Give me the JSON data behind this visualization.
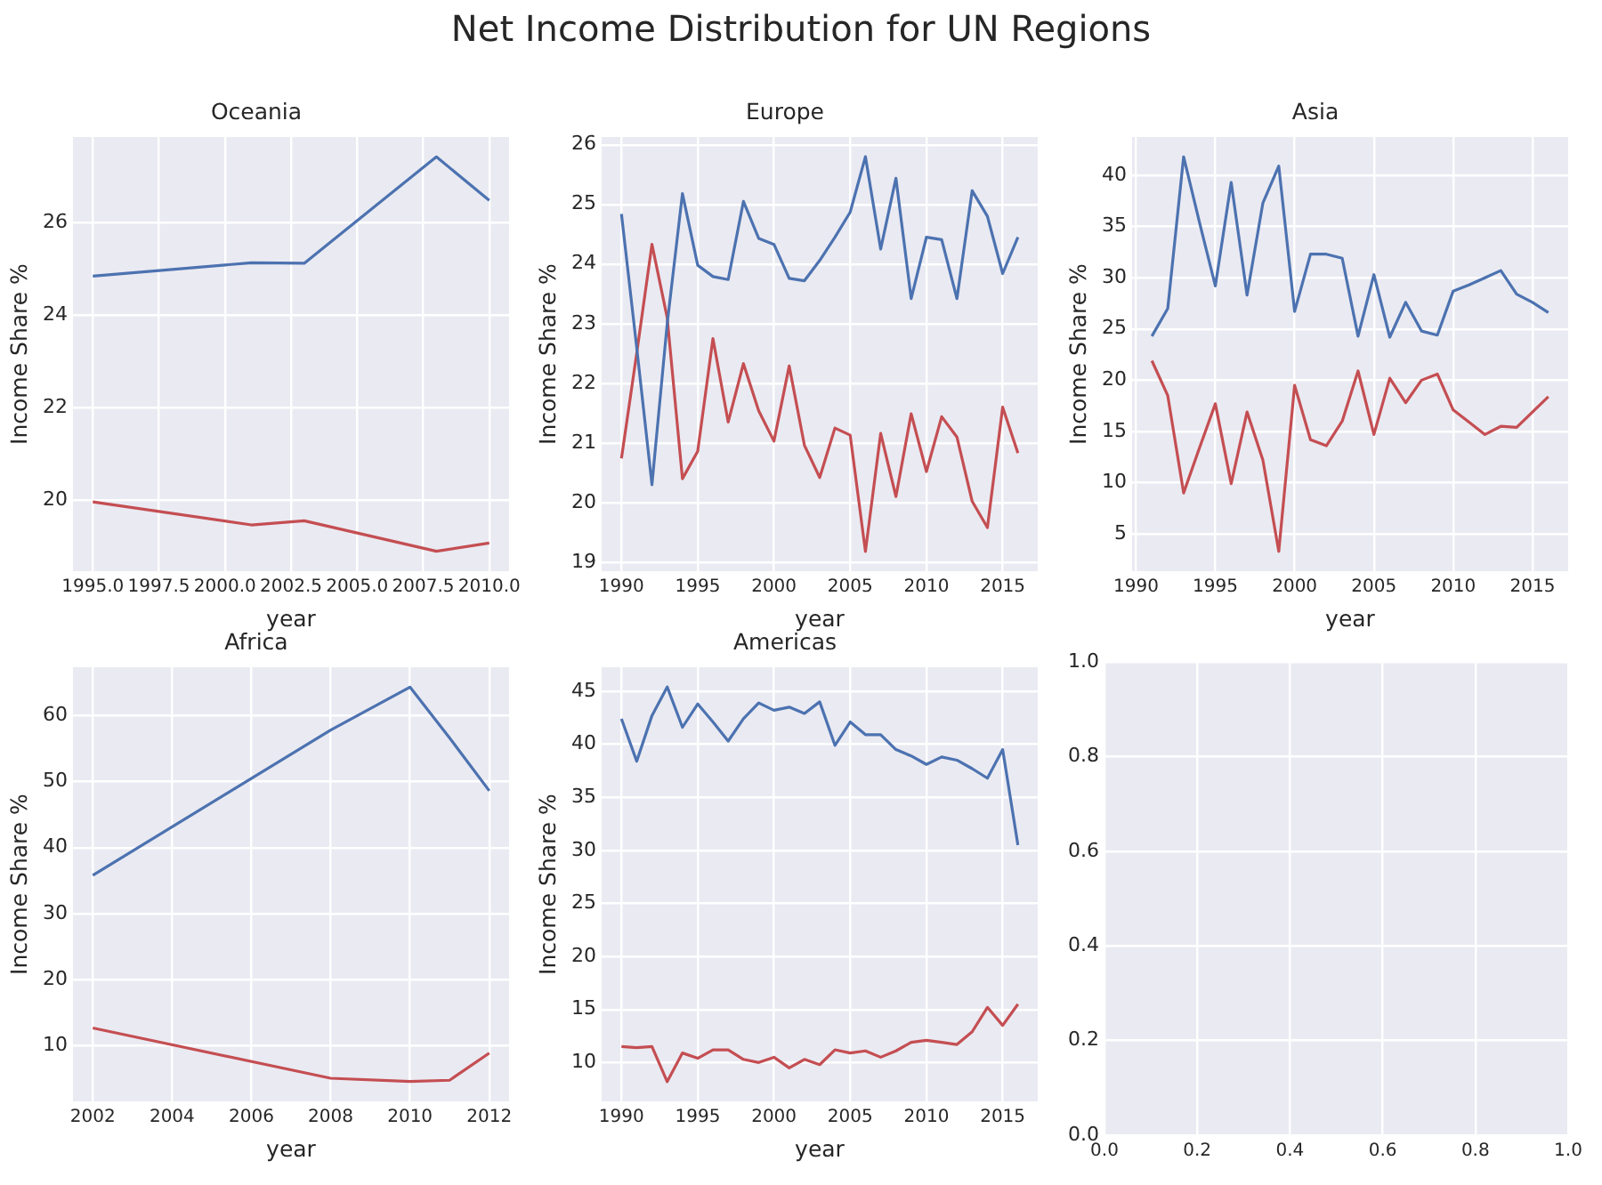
{
  "chart_data": [
    {
      "type": "other",
      "title": "Net Income Distribution for UN Regions"
    },
    {
      "type": "line",
      "title": "Oceania",
      "xlabel": "year",
      "ylabel": "Income Share %",
      "grid": true,
      "xlim": [
        1994.25,
        2010.75
      ],
      "ylim": [
        18.47,
        27.86
      ],
      "xticks": [
        {
          "value": 1995,
          "label": "1995.0"
        },
        {
          "value": 1997.5,
          "label": "1997.5"
        },
        {
          "value": 2000,
          "label": "2000.0"
        },
        {
          "value": 2002.5,
          "label": "2002.5"
        },
        {
          "value": 2005,
          "label": "2005.0"
        },
        {
          "value": 2007.5,
          "label": "2007.5"
        },
        {
          "value": 2010,
          "label": "2010.0"
        }
      ],
      "yticks": [
        20,
        22,
        24,
        26
      ],
      "x": [
        1995,
        2001,
        2003,
        2008,
        2010
      ],
      "series": [
        {
          "color": "#4c72b0",
          "values": [
            24.85,
            25.14,
            25.13,
            27.43,
            26.49
          ]
        },
        {
          "color": "#c44e52",
          "values": [
            19.97,
            19.47,
            19.56,
            18.9,
            19.08
          ]
        }
      ]
    },
    {
      "type": "line",
      "title": "Europe",
      "xlabel": "year",
      "ylabel": "Income Share %",
      "grid": true,
      "xlim": [
        1988.7,
        2017.3
      ],
      "ylim": [
        18.85,
        26.13
      ],
      "xticks": [
        1990,
        1995,
        2000,
        2005,
        2010,
        2015
      ],
      "yticks": [
        19,
        20,
        21,
        22,
        23,
        24,
        25,
        26
      ],
      "x": [
        1990,
        1991,
        1992,
        1993,
        1994,
        1995,
        1996,
        1997,
        1998,
        1999,
        2000,
        2001,
        2002,
        2003,
        2004,
        2005,
        2006,
        2007,
        2008,
        2009,
        2010,
        2011,
        2012,
        2013,
        2014,
        2015,
        2016
      ],
      "series": [
        {
          "color": "#4c72b0",
          "values": [
            24.84,
            22.6,
            20.3,
            23.0,
            25.18,
            23.98,
            23.79,
            23.74,
            25.05,
            24.43,
            24.33,
            23.76,
            23.72,
            24.06,
            24.45,
            24.87,
            25.8,
            24.25,
            25.44,
            23.42,
            24.45,
            24.41,
            23.42,
            25.23,
            24.8,
            23.84,
            24.45
          ]
        },
        {
          "color": "#c44e52",
          "values": [
            20.74,
            22.5,
            24.33,
            23.1,
            20.4,
            20.86,
            22.75,
            21.35,
            22.33,
            21.54,
            21.03,
            22.29,
            20.96,
            20.42,
            21.25,
            21.13,
            19.18,
            21.16,
            20.1,
            21.49,
            20.52,
            21.44,
            21.1,
            20.02,
            19.58,
            21.6,
            20.83
          ]
        }
      ]
    },
    {
      "type": "line",
      "title": "Asia",
      "xlabel": "year",
      "ylabel": "Income Share %",
      "grid": true,
      "xlim": [
        1989.75,
        2017.25
      ],
      "ylim": [
        1.37,
        43.73
      ],
      "xticks": [
        1990,
        1995,
        2000,
        2005,
        2010,
        2015
      ],
      "yticks": [
        5,
        10,
        15,
        20,
        25,
        30,
        35,
        40
      ],
      "x": [
        1991,
        1992,
        1993,
        1994,
        1995,
        1996,
        1997,
        1998,
        1999,
        2000,
        2001,
        2002,
        2003,
        2004,
        2005,
        2006,
        2007,
        2008,
        2009,
        2010,
        2011,
        2012,
        2013,
        2014,
        2015,
        2016
      ],
      "series": [
        {
          "color": "#4c72b0",
          "values": [
            24.3,
            27.0,
            41.8,
            35.4,
            29.2,
            39.3,
            28.3,
            37.3,
            40.9,
            26.7,
            32.3,
            32.3,
            31.9,
            24.3,
            30.3,
            24.2,
            27.6,
            24.8,
            24.4,
            28.7,
            29.3,
            30.0,
            30.7,
            28.4,
            27.6,
            26.6
          ]
        },
        {
          "color": "#c44e52",
          "values": [
            21.9,
            18.5,
            9.0,
            13.4,
            17.7,
            9.9,
            16.9,
            12.2,
            3.3,
            19.5,
            14.2,
            13.6,
            16.0,
            20.9,
            14.7,
            20.2,
            17.8,
            20.0,
            20.6,
            17.1,
            15.9,
            14.7,
            15.5,
            15.4,
            16.9,
            18.4
          ]
        }
      ]
    },
    {
      "type": "line",
      "title": "Africa",
      "xlabel": "year",
      "ylabel": "Income Share %",
      "grid": true,
      "xlim": [
        2001.5,
        2012.5
      ],
      "ylim": [
        1.6,
        67.3
      ],
      "xticks": [
        2002,
        2004,
        2006,
        2008,
        2010,
        2012
      ],
      "yticks": [
        10,
        20,
        30,
        40,
        50,
        60
      ],
      "x": [
        2002,
        2008,
        2010,
        2011,
        2012
      ],
      "series": [
        {
          "color": "#4c72b0",
          "values": [
            35.8,
            57.8,
            64.3,
            56.6,
            48.6
          ]
        },
        {
          "color": "#c44e52",
          "values": [
            12.7,
            5.1,
            4.6,
            4.8,
            8.9
          ]
        }
      ]
    },
    {
      "type": "line",
      "title": "Americas",
      "xlabel": "year",
      "ylabel": "Income Share %",
      "grid": true,
      "xlim": [
        1988.7,
        2017.3
      ],
      "ylim": [
        6.34,
        47.26
      ],
      "xticks": [
        1990,
        1995,
        2000,
        2005,
        2010,
        2015
      ],
      "yticks": [
        10,
        15,
        20,
        25,
        30,
        35,
        40,
        45
      ],
      "x": [
        1990,
        1991,
        1992,
        1993,
        1994,
        1995,
        1996,
        1997,
        1998,
        1999,
        2000,
        2001,
        2002,
        2003,
        2004,
        2005,
        2006,
        2007,
        2008,
        2009,
        2010,
        2011,
        2012,
        2013,
        2014,
        2015,
        2016
      ],
      "series": [
        {
          "color": "#4c72b0",
          "values": [
            42.4,
            38.4,
            42.7,
            45.4,
            41.6,
            43.8,
            42.1,
            40.3,
            42.4,
            43.9,
            43.2,
            43.5,
            42.9,
            44.0,
            39.9,
            42.1,
            40.9,
            40.9,
            39.5,
            38.9,
            38.1,
            38.8,
            38.5,
            37.7,
            36.8,
            39.5,
            30.5
          ]
        },
        {
          "color": "#c44e52",
          "values": [
            11.5,
            11.4,
            11.5,
            8.2,
            10.9,
            10.4,
            11.2,
            11.2,
            10.3,
            10.0,
            10.5,
            9.5,
            10.3,
            9.8,
            11.2,
            10.9,
            11.1,
            10.5,
            11.1,
            11.9,
            12.1,
            11.9,
            11.7,
            12.9,
            15.2,
            13.5,
            15.5
          ]
        }
      ]
    },
    {
      "type": "line",
      "grid": true,
      "xlim": [
        0,
        1
      ],
      "ylim": [
        0,
        1
      ],
      "xticks": [
        {
          "value": 0,
          "label": "0.0"
        },
        {
          "value": 0.2,
          "label": "0.2"
        },
        {
          "value": 0.4,
          "label": "0.4"
        },
        {
          "value": 0.6,
          "label": "0.6"
        },
        {
          "value": 0.8,
          "label": "0.8"
        },
        {
          "value": 1,
          "label": "1.0"
        }
      ],
      "yticks": [
        {
          "value": 0,
          "label": "0.0"
        },
        {
          "value": 0.2,
          "label": "0.2"
        },
        {
          "value": 0.4,
          "label": "0.4"
        },
        {
          "value": 0.6,
          "label": "0.6"
        },
        {
          "value": 0.8,
          "label": "0.8"
        },
        {
          "value": 1,
          "label": "1.0"
        }
      ]
    }
  ]
}
